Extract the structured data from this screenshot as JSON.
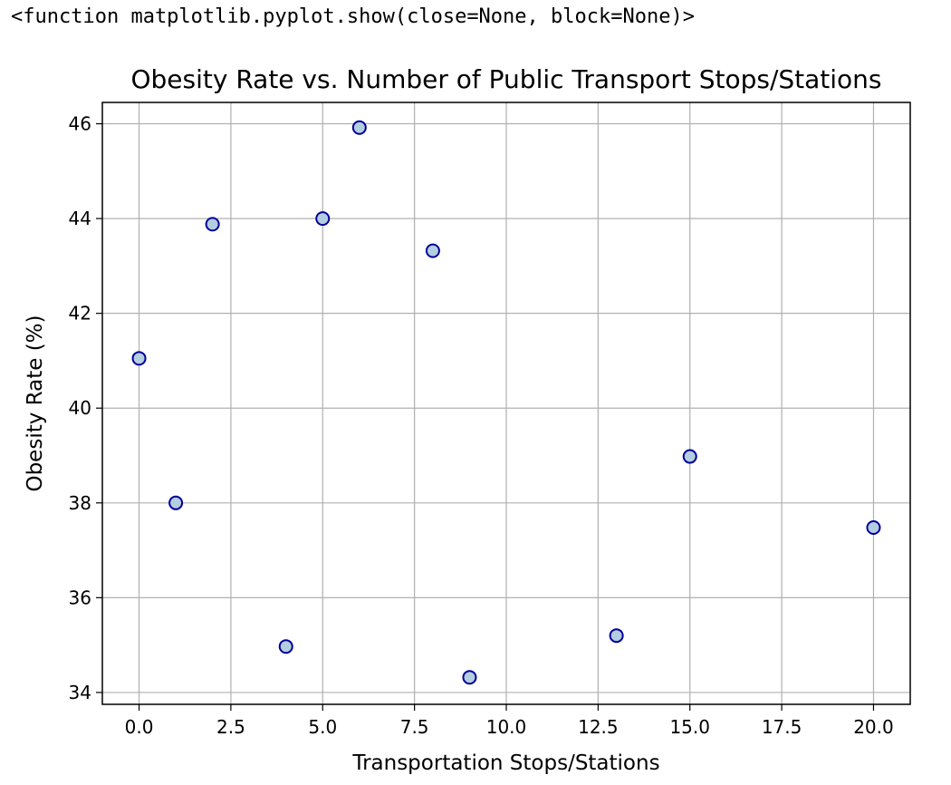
{
  "output_text": "<function matplotlib.pyplot.show(close=None, block=None)>",
  "chart_data": {
    "type": "scatter",
    "title": "Obesity Rate vs. Number of Public Transport Stops/Stations",
    "xlabel": "Transportation Stops/Stations",
    "ylabel": "Obesity Rate (%)",
    "xlim": [
      -1.0,
      21.0
    ],
    "ylim": [
      33.75,
      46.45
    ],
    "x_ticks": [
      0.0,
      2.5,
      5.0,
      7.5,
      10.0,
      12.5,
      15.0,
      17.5,
      20.0
    ],
    "x_tick_labels": [
      "0.0",
      "2.5",
      "5.0",
      "7.5",
      "10.0",
      "12.5",
      "15.0",
      "17.5",
      "20.0"
    ],
    "y_ticks": [
      34,
      36,
      38,
      40,
      42,
      44,
      46
    ],
    "y_tick_labels": [
      "34",
      "36",
      "38",
      "40",
      "42",
      "44",
      "46"
    ],
    "grid": true,
    "marker_face": "#b4cde0",
    "marker_edge": "#000099",
    "points": [
      {
        "x": 0,
        "y": 41.05
      },
      {
        "x": 1,
        "y": 38.0
      },
      {
        "x": 2,
        "y": 43.88
      },
      {
        "x": 4,
        "y": 34.97
      },
      {
        "x": 5,
        "y": 44.0
      },
      {
        "x": 6,
        "y": 45.92
      },
      {
        "x": 8,
        "y": 43.32
      },
      {
        "x": 9,
        "y": 34.32
      },
      {
        "x": 13,
        "y": 35.2
      },
      {
        "x": 15,
        "y": 38.98
      },
      {
        "x": 20,
        "y": 37.48
      }
    ]
  }
}
